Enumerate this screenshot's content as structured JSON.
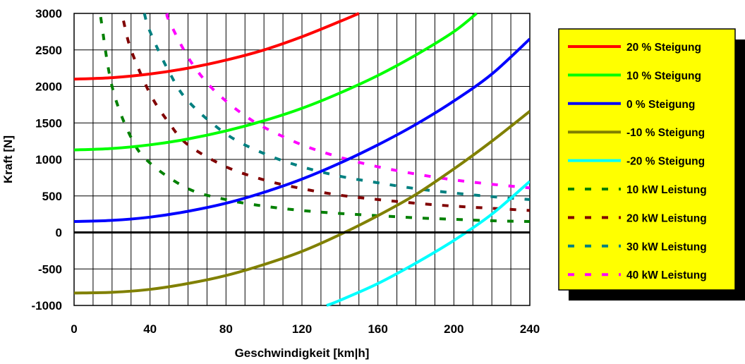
{
  "chart_data": {
    "type": "line",
    "title": "",
    "xlabel": "Geschwindigkeit [km|h]",
    "ylabel": "Kraft [N]",
    "xlim": [
      0,
      240
    ],
    "ylim": [
      -1000,
      3000
    ],
    "x_ticks": [
      "0",
      "40",
      "80",
      "120",
      "160",
      "200",
      "240"
    ],
    "y_ticks": [
      "3000",
      "2500",
      "2000",
      "1500",
      "1000",
      "500",
      "0",
      "-500",
      "-1000"
    ],
    "grid": true,
    "legend_position": "right",
    "series": [
      {
        "name": "20  % Steigung",
        "color": "#ff0000",
        "style": "solid",
        "x": [
          0,
          20,
          40,
          60,
          80,
          100,
          120,
          140,
          150
        ],
        "y": [
          2100,
          2120,
          2170,
          2250,
          2360,
          2500,
          2680,
          2890,
          3000
        ]
      },
      {
        "name": "10  % Steigung",
        "color": "#00ff00",
        "style": "solid",
        "x": [
          0,
          20,
          40,
          60,
          80,
          100,
          120,
          140,
          160,
          180,
          200,
          212
        ],
        "y": [
          1130,
          1150,
          1200,
          1280,
          1390,
          1530,
          1700,
          1910,
          2150,
          2430,
          2750,
          3000
        ]
      },
      {
        "name": "0  % Steigung",
        "color": "#0000ff",
        "style": "solid",
        "x": [
          0,
          20,
          40,
          60,
          80,
          100,
          120,
          140,
          160,
          180,
          200,
          220,
          240
        ],
        "y": [
          150,
          165,
          210,
          290,
          400,
          550,
          730,
          950,
          1200,
          1480,
          1800,
          2170,
          2650
        ]
      },
      {
        "name": "-10  % Steigung",
        "color": "#808000",
        "style": "solid",
        "x": [
          0,
          20,
          40,
          60,
          80,
          100,
          120,
          140,
          160,
          180,
          200,
          220,
          240
        ],
        "y": [
          -830,
          -820,
          -780,
          -700,
          -590,
          -440,
          -260,
          -30,
          230,
          520,
          870,
          1250,
          1660
        ]
      },
      {
        "name": "-20  % Steigung",
        "color": "#00ffff",
        "style": "solid",
        "x": [
          133,
          140,
          160,
          180,
          200,
          220,
          240
        ],
        "y": [
          -1000,
          -930,
          -700,
          -420,
          -110,
          250,
          700
        ]
      },
      {
        "name": "10 kW Leistung",
        "color": "#008000",
        "style": "dashed",
        "x": [
          14,
          20,
          30,
          40,
          60,
          80,
          100,
          120,
          140,
          160,
          180,
          200,
          220,
          240
        ],
        "y": [
          2950,
          2000,
          1300,
          950,
          600,
          450,
          360,
          300,
          260,
          230,
          200,
          180,
          160,
          150
        ]
      },
      {
        "name": "20 kW Leistung",
        "color": "#800000",
        "style": "dashed",
        "x": [
          26,
          30,
          40,
          50,
          60,
          80,
          100,
          120,
          140,
          160,
          180,
          200,
          220,
          240
        ],
        "y": [
          2900,
          2500,
          1900,
          1500,
          1200,
          900,
          720,
          600,
          510,
          450,
          400,
          360,
          330,
          300
        ]
      },
      {
        "name": "30 kW Leistung",
        "color": "#008080",
        "style": "dashed",
        "x": [
          37,
          40,
          50,
          60,
          80,
          100,
          120,
          140,
          160,
          180,
          200,
          220,
          240
        ],
        "y": [
          3000,
          2750,
          2200,
          1800,
          1350,
          1080,
          900,
          770,
          680,
          600,
          540,
          490,
          450
        ]
      },
      {
        "name": "40 kW Leistung",
        "color": "#ff00ff",
        "style": "dashed",
        "x": [
          49,
          50,
          60,
          70,
          80,
          90,
          100,
          120,
          140,
          160,
          180,
          200,
          220,
          240
        ],
        "y": [
          3000,
          2900,
          2400,
          2050,
          1800,
          1600,
          1440,
          1200,
          1030,
          900,
          800,
          720,
          660,
          610
        ]
      }
    ]
  }
}
